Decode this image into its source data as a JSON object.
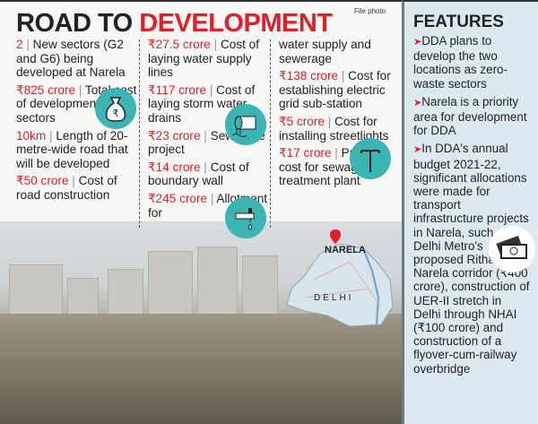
{
  "title": {
    "part1": "ROAD TO ",
    "part2": "DEVELOPMENT"
  },
  "credit": "File photo",
  "columns": [
    [
      {
        "hl": "2",
        "text": "New sectors (G2 and G6) being developed at Narela"
      },
      {
        "hl": "₹825 crore",
        "text": "Total cost of development of the sectors"
      },
      {
        "hl": "10km",
        "text": "Length of 20-metre-wide road that will be developed"
      },
      {
        "hl": "₹50 crore",
        "text": "Cost of road construction"
      }
    ],
    [
      {
        "hl": "₹27.5 crore",
        "text": "Cost of laying water supply lines"
      },
      {
        "hl": "₹117 crore",
        "text": "Cost of laying storm water drains"
      },
      {
        "hl": "₹23 crore",
        "text": "Sewerage project"
      },
      {
        "hl": "₹14 crore",
        "text": "Cost of boundary wall"
      },
      {
        "hl": "₹245 crore",
        "text": "Allotment for"
      }
    ],
    [
      {
        "hl": "",
        "text": "water supply and sewerage"
      },
      {
        "hl": "₹138 crore",
        "text": "Cost for establishing electric grid sub-station"
      },
      {
        "hl": "₹5 crore",
        "text": "Cost for installing streetlights"
      },
      {
        "hl": "₹17 crore",
        "text": "Project cost for sewage treatment plant"
      }
    ]
  ],
  "map": {
    "narela": "NARELA",
    "delhi": "DELHI"
  },
  "features": {
    "title": "FEATURES",
    "items": [
      "DDA plans to develop the two locations as zero-waste sectors",
      "Narela is a priority area for development for DDA",
      "In DDA's annual budget 2021-22, significant allocations were made for transport infrastructure projects in Narela, such as Delhi Metro's proposed Rithala-Narela corridor (₹400 crore), construction of UER-II stretch in Delhi through NHAI (₹100 crore) and construction of a flyover-cum-railway overbridge"
    ]
  },
  "colors": {
    "accent": "#e31e24",
    "icon_bg": "#3bb4b4",
    "panel_bg": "#dde9f1"
  },
  "icons": [
    "money-bag-icon",
    "water-pipe-icon",
    "tap-icon",
    "streetlight-icon",
    "cash-icon",
    "map-pin-icon"
  ]
}
